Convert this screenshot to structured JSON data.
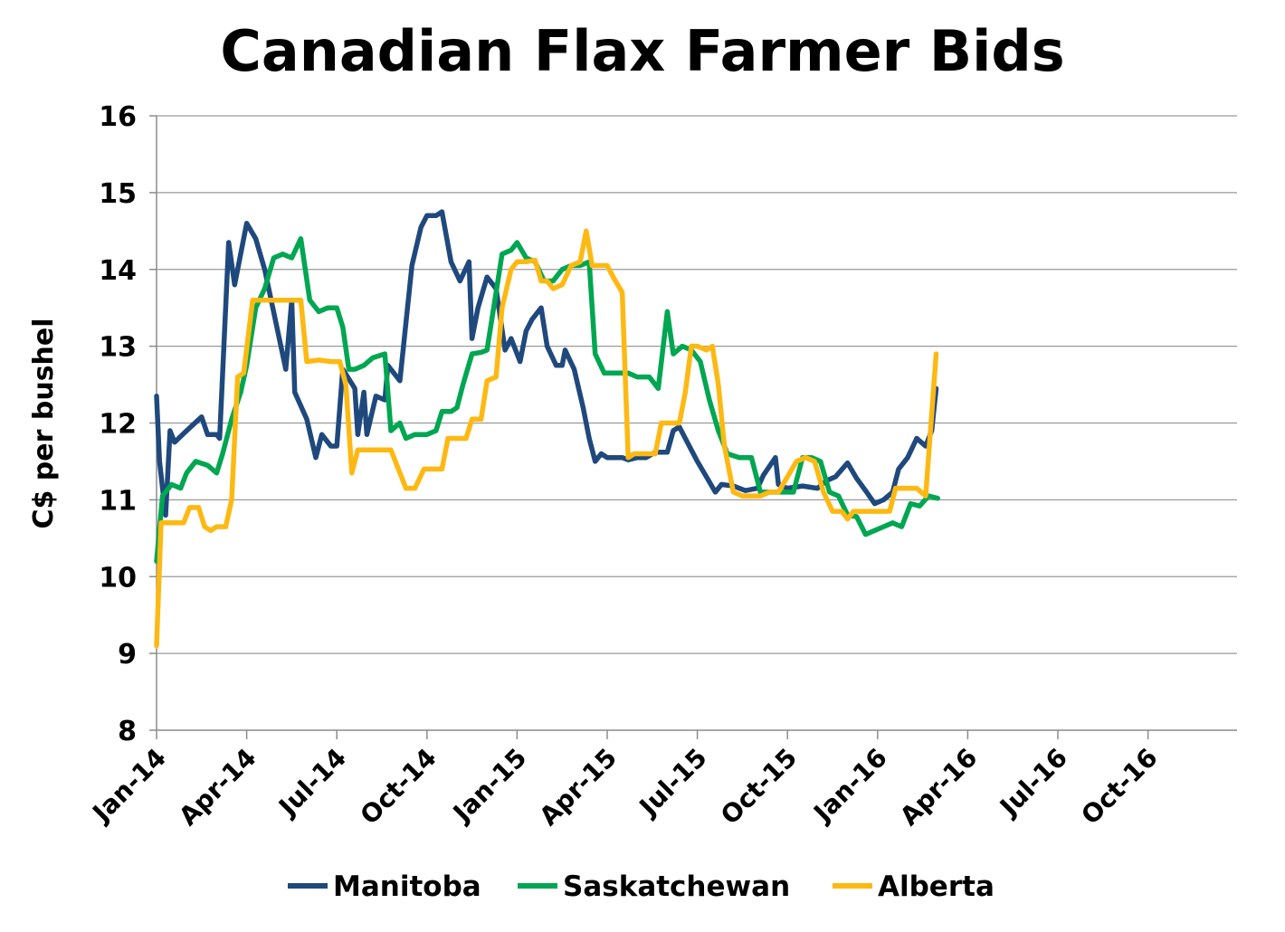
{
  "chart_data": {
    "type": "line",
    "title": "Canadian Flax Farmer Bids",
    "ylabel": "C$ per bushel",
    "xlabel": "",
    "ylim": [
      8,
      16
    ],
    "yticks": [
      8,
      9,
      10,
      11,
      12,
      13,
      14,
      15,
      16
    ],
    "x_categories": [
      "Jan-14",
      "Apr-14",
      "Jul-14",
      "Oct-14",
      "Jan-15",
      "Apr-15",
      "Jul-15",
      "Oct-15",
      "Jan-16",
      "Apr-16",
      "Jul-16",
      "Oct-16"
    ],
    "x_start": "Jan-14",
    "grid": true,
    "legend_position": "bottom",
    "series": [
      {
        "name": "Manitoba",
        "color": "#1f497d",
        "points": [
          [
            0,
            12.35
          ],
          [
            0.1,
            11.5
          ],
          [
            0.3,
            10.8
          ],
          [
            0.45,
            11.9
          ],
          [
            0.6,
            11.75
          ],
          [
            1.0,
            11.9
          ],
          [
            1.5,
            12.08
          ],
          [
            1.7,
            11.85
          ],
          [
            2.0,
            11.85
          ],
          [
            2.1,
            11.8
          ],
          [
            2.4,
            14.35
          ],
          [
            2.6,
            13.8
          ],
          [
            3.0,
            14.6
          ],
          [
            3.3,
            14.4
          ],
          [
            3.6,
            14.0
          ],
          [
            4.3,
            12.7
          ],
          [
            4.5,
            13.6
          ],
          [
            4.6,
            12.4
          ],
          [
            5.0,
            12.05
          ],
          [
            5.3,
            11.55
          ],
          [
            5.5,
            11.85
          ],
          [
            5.8,
            11.7
          ],
          [
            6.0,
            11.7
          ],
          [
            6.2,
            12.7
          ],
          [
            6.6,
            12.45
          ],
          [
            6.7,
            11.85
          ],
          [
            6.9,
            12.4
          ],
          [
            7.0,
            11.85
          ],
          [
            7.3,
            12.35
          ],
          [
            7.6,
            12.3
          ],
          [
            7.7,
            12.75
          ],
          [
            8.1,
            12.55
          ],
          [
            8.5,
            14.05
          ],
          [
            8.8,
            14.55
          ],
          [
            9.0,
            14.7
          ],
          [
            9.3,
            14.7
          ],
          [
            9.5,
            14.75
          ],
          [
            9.8,
            14.1
          ],
          [
            10.1,
            13.85
          ],
          [
            10.4,
            14.1
          ],
          [
            10.5,
            13.1
          ],
          [
            10.7,
            13.5
          ],
          [
            11.0,
            13.9
          ],
          [
            11.3,
            13.75
          ],
          [
            11.6,
            12.95
          ],
          [
            11.8,
            13.1
          ],
          [
            12.1,
            12.8
          ],
          [
            12.3,
            13.2
          ],
          [
            12.5,
            13.35
          ],
          [
            12.8,
            13.5
          ],
          [
            13.0,
            13.0
          ],
          [
            13.3,
            12.75
          ],
          [
            13.5,
            12.75
          ],
          [
            13.6,
            12.95
          ],
          [
            13.9,
            12.7
          ],
          [
            14.2,
            12.2
          ],
          [
            14.4,
            11.8
          ],
          [
            14.6,
            11.5
          ],
          [
            14.8,
            11.6
          ],
          [
            15.0,
            11.55
          ],
          [
            15.5,
            11.55
          ],
          [
            15.7,
            11.52
          ],
          [
            16.0,
            11.55
          ],
          [
            16.3,
            11.55
          ],
          [
            16.6,
            11.62
          ],
          [
            17.0,
            11.62
          ],
          [
            17.2,
            11.9
          ],
          [
            17.4,
            11.95
          ],
          [
            17.6,
            11.8
          ],
          [
            18.0,
            11.5
          ],
          [
            18.3,
            11.3
          ],
          [
            18.6,
            11.1
          ],
          [
            18.8,
            11.2
          ],
          [
            19.2,
            11.18
          ],
          [
            19.6,
            11.12
          ],
          [
            20.0,
            11.15
          ],
          [
            20.2,
            11.32
          ],
          [
            20.6,
            11.55
          ],
          [
            20.7,
            11.2
          ],
          [
            21.0,
            11.15
          ],
          [
            21.5,
            11.18
          ],
          [
            22.0,
            11.15
          ],
          [
            22.3,
            11.25
          ],
          [
            22.6,
            11.3
          ],
          [
            23.0,
            11.48
          ],
          [
            23.3,
            11.28
          ],
          [
            23.6,
            11.12
          ],
          [
            23.9,
            10.95
          ],
          [
            24.2,
            11.0
          ],
          [
            24.5,
            11.1
          ],
          [
            24.7,
            11.4
          ],
          [
            25.0,
            11.55
          ],
          [
            25.3,
            11.8
          ],
          [
            25.6,
            11.7
          ],
          [
            25.8,
            11.9
          ],
          [
            25.95,
            12.45
          ]
        ]
      },
      {
        "name": "Saskatchewan",
        "color": "#00a651",
        "points": [
          [
            0,
            10.2
          ],
          [
            0.2,
            11.05
          ],
          [
            0.5,
            11.2
          ],
          [
            0.8,
            11.15
          ],
          [
            1.0,
            11.35
          ],
          [
            1.3,
            11.5
          ],
          [
            1.7,
            11.45
          ],
          [
            2.0,
            11.35
          ],
          [
            2.2,
            11.6
          ],
          [
            2.5,
            12.05
          ],
          [
            2.8,
            12.4
          ],
          [
            3.0,
            12.75
          ],
          [
            3.3,
            13.5
          ],
          [
            3.6,
            13.75
          ],
          [
            3.9,
            14.15
          ],
          [
            4.2,
            14.2
          ],
          [
            4.5,
            14.15
          ],
          [
            4.8,
            14.4
          ],
          [
            5.1,
            13.6
          ],
          [
            5.4,
            13.45
          ],
          [
            5.7,
            13.5
          ],
          [
            6.0,
            13.5
          ],
          [
            6.2,
            13.25
          ],
          [
            6.4,
            12.7
          ],
          [
            6.6,
            12.7
          ],
          [
            6.9,
            12.75
          ],
          [
            7.2,
            12.85
          ],
          [
            7.6,
            12.9
          ],
          [
            7.8,
            11.9
          ],
          [
            8.1,
            12.0
          ],
          [
            8.3,
            11.8
          ],
          [
            8.6,
            11.85
          ],
          [
            9.0,
            11.85
          ],
          [
            9.3,
            11.9
          ],
          [
            9.5,
            12.15
          ],
          [
            9.8,
            12.15
          ],
          [
            10.0,
            12.2
          ],
          [
            10.2,
            12.5
          ],
          [
            10.5,
            12.9
          ],
          [
            10.8,
            12.92
          ],
          [
            11.0,
            12.95
          ],
          [
            11.3,
            13.7
          ],
          [
            11.5,
            14.2
          ],
          [
            11.8,
            14.25
          ],
          [
            12.0,
            14.35
          ],
          [
            12.3,
            14.15
          ],
          [
            12.6,
            14.1
          ],
          [
            12.9,
            13.85
          ],
          [
            13.2,
            13.85
          ],
          [
            13.5,
            14.0
          ],
          [
            13.8,
            14.05
          ],
          [
            14.1,
            14.05
          ],
          [
            14.4,
            14.1
          ],
          [
            14.6,
            12.9
          ],
          [
            14.9,
            12.65
          ],
          [
            15.3,
            12.65
          ],
          [
            15.7,
            12.65
          ],
          [
            16.0,
            12.6
          ],
          [
            16.4,
            12.6
          ],
          [
            16.7,
            12.45
          ],
          [
            17.0,
            13.45
          ],
          [
            17.2,
            12.9
          ],
          [
            17.5,
            13.0
          ],
          [
            17.8,
            12.95
          ],
          [
            18.1,
            12.8
          ],
          [
            18.4,
            12.3
          ],
          [
            18.7,
            11.9
          ],
          [
            19.0,
            11.6
          ],
          [
            19.4,
            11.55
          ],
          [
            19.8,
            11.55
          ],
          [
            20.1,
            11.1
          ],
          [
            20.5,
            11.1
          ],
          [
            20.8,
            11.1
          ],
          [
            21.2,
            11.1
          ],
          [
            21.5,
            11.55
          ],
          [
            21.8,
            11.55
          ],
          [
            22.1,
            11.5
          ],
          [
            22.4,
            11.1
          ],
          [
            22.7,
            11.05
          ],
          [
            23.0,
            10.8
          ],
          [
            23.3,
            10.78
          ],
          [
            23.6,
            10.55
          ],
          [
            23.9,
            10.6
          ],
          [
            24.2,
            10.65
          ],
          [
            24.5,
            10.7
          ],
          [
            24.8,
            10.65
          ],
          [
            25.1,
            10.95
          ],
          [
            25.4,
            10.92
          ],
          [
            25.7,
            11.05
          ],
          [
            26.0,
            11.02
          ]
        ]
      },
      {
        "name": "Alberta",
        "color": "#fdb913",
        "points": [
          [
            0,
            9.1
          ],
          [
            0.15,
            10.7
          ],
          [
            0.6,
            10.7
          ],
          [
            0.9,
            10.7
          ],
          [
            1.1,
            10.9
          ],
          [
            1.4,
            10.9
          ],
          [
            1.6,
            10.65
          ],
          [
            1.8,
            10.6
          ],
          [
            2.0,
            10.65
          ],
          [
            2.3,
            10.65
          ],
          [
            2.5,
            11.0
          ],
          [
            2.7,
            12.6
          ],
          [
            2.9,
            12.65
          ],
          [
            3.2,
            13.6
          ],
          [
            3.6,
            13.6
          ],
          [
            4.0,
            13.6
          ],
          [
            4.4,
            13.6
          ],
          [
            4.8,
            13.6
          ],
          [
            5.0,
            12.8
          ],
          [
            5.4,
            12.82
          ],
          [
            5.8,
            12.8
          ],
          [
            6.1,
            12.8
          ],
          [
            6.3,
            12.5
          ],
          [
            6.5,
            11.35
          ],
          [
            6.7,
            11.65
          ],
          [
            7.0,
            11.65
          ],
          [
            7.4,
            11.65
          ],
          [
            7.8,
            11.65
          ],
          [
            8.0,
            11.45
          ],
          [
            8.3,
            11.15
          ],
          [
            8.6,
            11.15
          ],
          [
            8.9,
            11.4
          ],
          [
            9.2,
            11.4
          ],
          [
            9.5,
            11.4
          ],
          [
            9.7,
            11.8
          ],
          [
            10.0,
            11.8
          ],
          [
            10.3,
            11.8
          ],
          [
            10.5,
            12.05
          ],
          [
            10.8,
            12.05
          ],
          [
            11.0,
            12.55
          ],
          [
            11.3,
            12.6
          ],
          [
            11.5,
            13.5
          ],
          [
            11.8,
            14.0
          ],
          [
            12.0,
            14.1
          ],
          [
            12.3,
            14.1
          ],
          [
            12.6,
            14.12
          ],
          [
            12.8,
            13.85
          ],
          [
            13.0,
            13.85
          ],
          [
            13.2,
            13.75
          ],
          [
            13.5,
            13.8
          ],
          [
            13.8,
            14.05
          ],
          [
            14.1,
            14.1
          ],
          [
            14.3,
            14.5
          ],
          [
            14.5,
            14.05
          ],
          [
            14.7,
            14.05
          ],
          [
            15.0,
            14.05
          ],
          [
            15.2,
            13.9
          ],
          [
            15.5,
            13.7
          ],
          [
            15.7,
            11.55
          ],
          [
            15.9,
            11.6
          ],
          [
            16.2,
            11.6
          ],
          [
            16.6,
            11.6
          ],
          [
            16.8,
            12.0
          ],
          [
            17.1,
            12.0
          ],
          [
            17.4,
            12.0
          ],
          [
            17.6,
            12.4
          ],
          [
            17.8,
            13.0
          ],
          [
            18.0,
            13.0
          ],
          [
            18.3,
            12.95
          ],
          [
            18.5,
            13.0
          ],
          [
            18.7,
            12.5
          ],
          [
            18.9,
            11.7
          ],
          [
            19.2,
            11.1
          ],
          [
            19.5,
            11.05
          ],
          [
            19.8,
            11.05
          ],
          [
            20.1,
            11.05
          ],
          [
            20.4,
            11.1
          ],
          [
            20.7,
            11.1
          ],
          [
            21.0,
            11.3
          ],
          [
            21.3,
            11.5
          ],
          [
            21.6,
            11.55
          ],
          [
            21.9,
            11.5
          ],
          [
            22.2,
            11.1
          ],
          [
            22.5,
            10.85
          ],
          [
            22.8,
            10.85
          ],
          [
            23.0,
            10.75
          ],
          [
            23.2,
            10.85
          ],
          [
            23.5,
            10.85
          ],
          [
            23.8,
            10.85
          ],
          [
            24.1,
            10.85
          ],
          [
            24.4,
            10.85
          ],
          [
            24.6,
            11.15
          ],
          [
            25.0,
            11.15
          ],
          [
            25.3,
            11.15
          ],
          [
            25.6,
            11.05
          ],
          [
            25.95,
            12.9
          ]
        ]
      }
    ],
    "series_notes": "x values are months elapsed since Jan-14"
  }
}
